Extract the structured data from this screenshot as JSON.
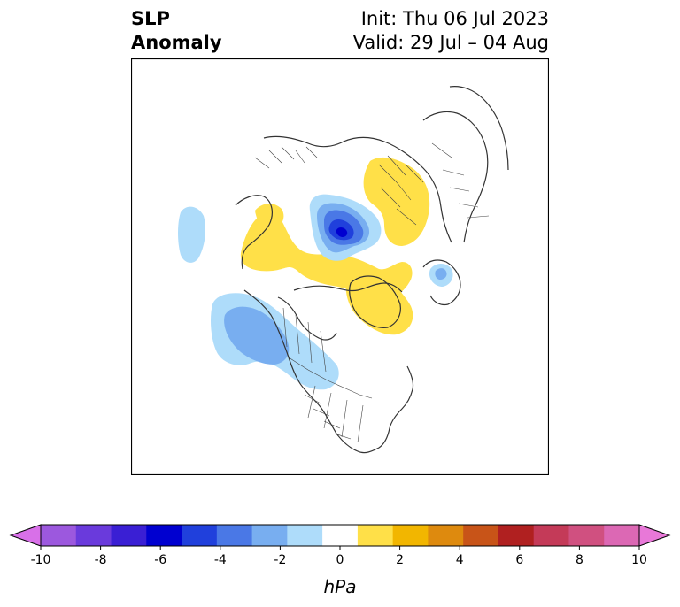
{
  "header": {
    "title_line1": "SLP",
    "title_line2": "Anomaly",
    "init": "Init: Thu 06 Jul 2023",
    "valid": "Valid: 29 Jul – 04 Aug"
  },
  "map": {
    "projection": "polar-stereographic-north",
    "coastline_color": "#333333",
    "anomalies": [
      {
        "feature": "negative-center-arctic",
        "level_hpa": -4
      },
      {
        "feature": "negative-center-pacific",
        "level_hpa": -2
      },
      {
        "feature": "negative-small-europe",
        "level_hpa": -2
      },
      {
        "feature": "positive-band-canada",
        "level_hpa": 1
      },
      {
        "feature": "positive-greenland",
        "level_hpa": 1
      },
      {
        "feature": "positive-siberia",
        "level_hpa": 1
      }
    ]
  },
  "colorbar": {
    "unit": "hPa",
    "tick_labels": [
      "-10",
      "-8",
      "-6",
      "-4",
      "-2",
      "0",
      "2",
      "4",
      "6",
      "8",
      "10"
    ],
    "colors": [
      "#d870e8",
      "#9c58de",
      "#6a3adc",
      "#3a1fd4",
      "#0000d0",
      "#2040dc",
      "#4a78e6",
      "#78aef0",
      "#aedcfa",
      "#ffffff",
      "#ffe048",
      "#f2b600",
      "#de8a0e",
      "#c85418",
      "#b02020",
      "#c43a58",
      "#d05080",
      "#dc68b4",
      "#e878d8"
    ]
  }
}
